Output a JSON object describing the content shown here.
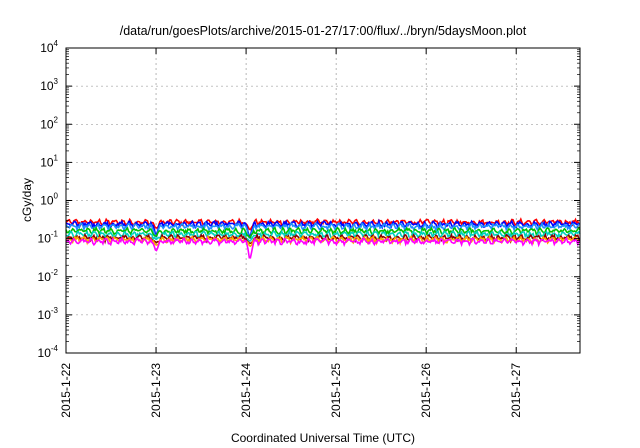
{
  "chart_data": {
    "type": "line",
    "title": "/data/run/goesPlots/archive/2015-01-27/17:00/flux/../bryn/5daysMoon.plot",
    "xlabel": "Coordinated Universal Time (UTC)",
    "ylabel": "cGy/day",
    "yscale": "log",
    "ylim": [
      0.0001,
      10000
    ],
    "y_ticks": [
      {
        "base": "10",
        "exp": "-4",
        "value": 0.0001
      },
      {
        "base": "10",
        "exp": "-3",
        "value": 0.001
      },
      {
        "base": "10",
        "exp": "-2",
        "value": 0.01
      },
      {
        "base": "10",
        "exp": "-1",
        "value": 0.1
      },
      {
        "base": "10",
        "exp": "0",
        "value": 1
      },
      {
        "base": "10",
        "exp": "1",
        "value": 10
      },
      {
        "base": "10",
        "exp": "2",
        "value": 100
      },
      {
        "base": "10",
        "exp": "3",
        "value": 1000
      },
      {
        "base": "10",
        "exp": "4",
        "value": 10000
      }
    ],
    "xlim": [
      "2015-01-22 00:00",
      "2015-01-27 17:00"
    ],
    "x_ticks": [
      "2015-1-22",
      "2015-1-23",
      "2015-1-24",
      "2015-1-25",
      "2015-1-26",
      "2015-1-27"
    ],
    "grid": true,
    "series": [
      {
        "color": "#ff0000",
        "level": 0.27,
        "dips": [
          [
            "2015-01-23 00:00",
            0.18
          ],
          [
            "2015-01-24 01:00",
            0.16
          ]
        ]
      },
      {
        "color": "#0000ff",
        "level": 0.24,
        "dips": [
          [
            "2015-01-23 00:00",
            0.12
          ],
          [
            "2015-01-24 01:00",
            0.1
          ]
        ]
      },
      {
        "color": "#1e90ff",
        "level": 0.21,
        "dips": [
          [
            "2015-01-23 00:00",
            0.1
          ],
          [
            "2015-01-24 01:00",
            0.09
          ]
        ]
      },
      {
        "color": "#00c000",
        "level": 0.16,
        "dips": [
          [
            "2015-01-23 00:00",
            0.11
          ],
          [
            "2015-01-24 01:00",
            0.1
          ]
        ]
      },
      {
        "color": "#00d0c0",
        "level": 0.13,
        "dips": [
          [
            "2015-01-23 00:00",
            0.09
          ],
          [
            "2015-01-24 01:00",
            0.08
          ]
        ]
      },
      {
        "color": "#8b0000",
        "level": 0.105,
        "dips": [
          [
            "2015-01-23 00:00",
            0.075
          ],
          [
            "2015-01-24 01:00",
            0.07
          ]
        ]
      },
      {
        "color": "#ffa500",
        "level": 0.095,
        "dips": [
          [
            "2015-01-23 00:00",
            0.065
          ],
          [
            "2015-01-24 01:00",
            0.06
          ]
        ]
      },
      {
        "color": "#ff00ff",
        "level": 0.085,
        "dips": [
          [
            "2015-01-23 00:00",
            0.045
          ],
          [
            "2015-01-24 01:00",
            0.025
          ]
        ]
      }
    ]
  }
}
